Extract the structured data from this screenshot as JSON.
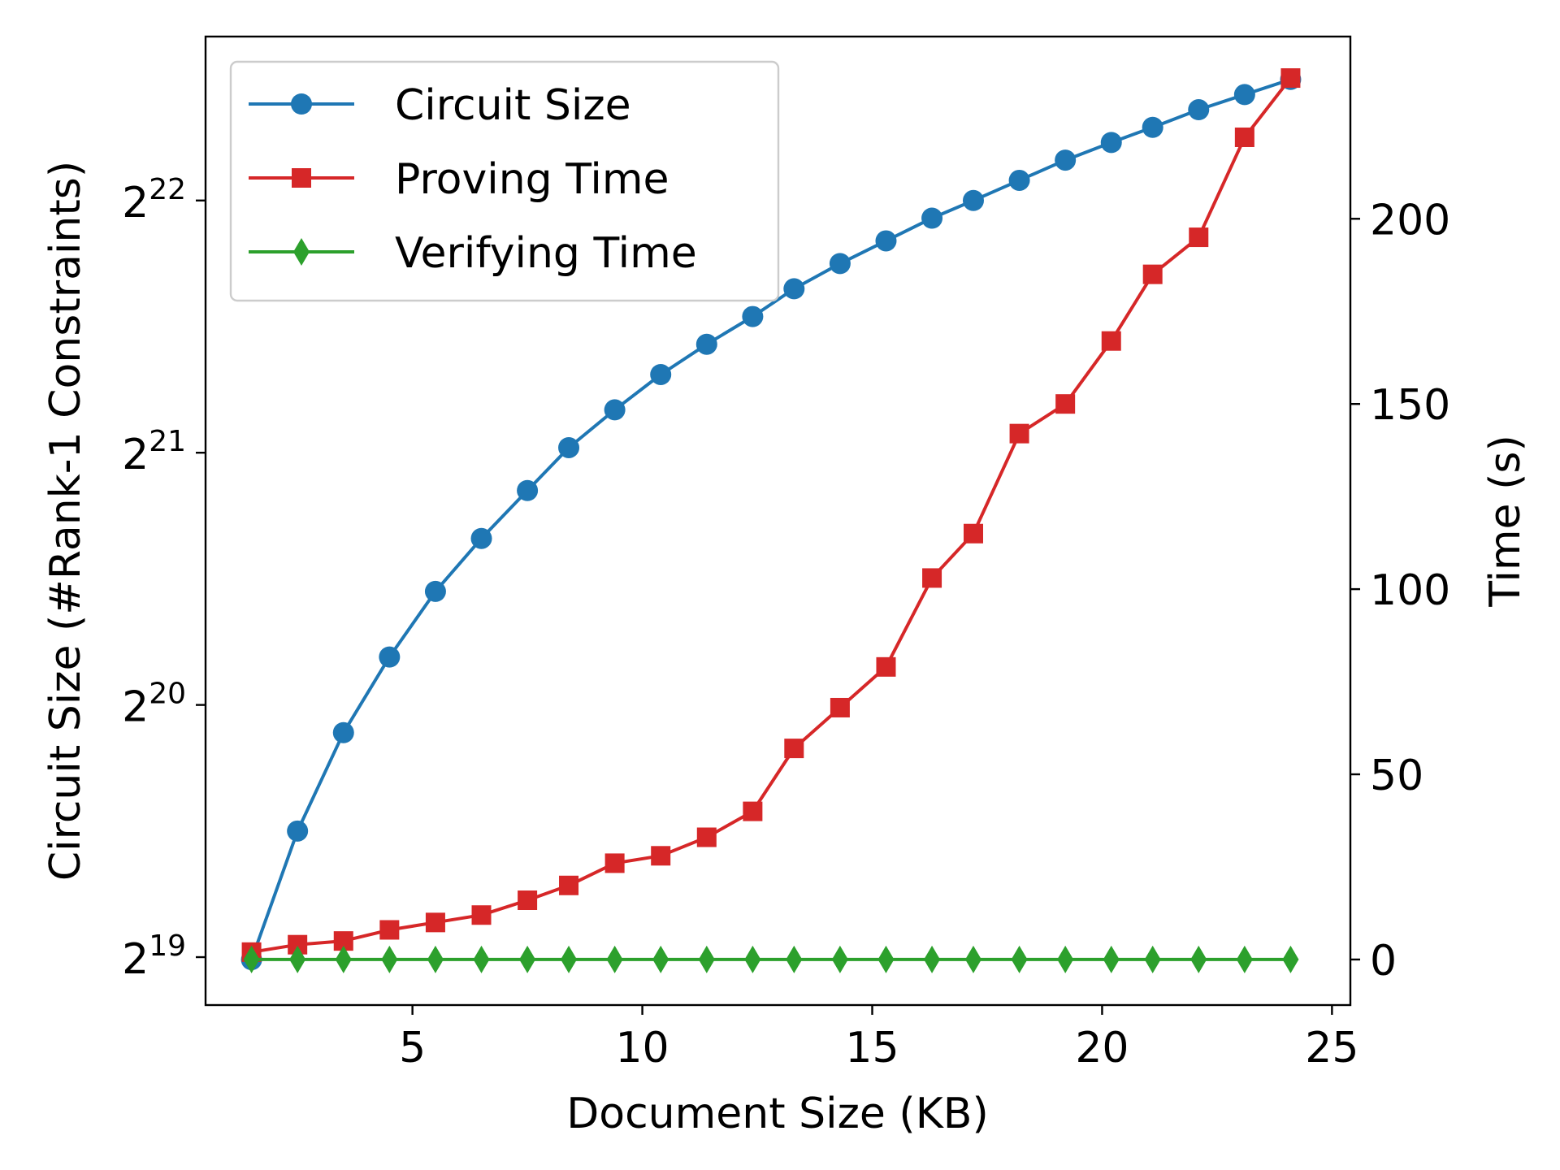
{
  "chart_data": {
    "type": "line",
    "xlabel": "Document Size (KB)",
    "ylabel_left": "Circuit Size (#Rank-1 Constraints)",
    "ylabel_right": "Time (s)",
    "x_ticks": [
      "5",
      "10",
      "15",
      "20",
      "25"
    ],
    "y_left_ticks": [
      {
        "base": "2",
        "exp": "19"
      },
      {
        "base": "2",
        "exp": "20"
      },
      {
        "base": "2",
        "exp": "21"
      },
      {
        "base": "2",
        "exp": "22"
      }
    ],
    "y_right_ticks": [
      "0",
      "50",
      "100",
      "150",
      "200"
    ],
    "xlim": [
      0.5,
      25.4
    ],
    "y_left_scale": "log2",
    "y_left_lim_log2": [
      18.81,
      22.65
    ],
    "y_right_lim": [
      -12.3,
      249.2
    ],
    "legend_position": "upper-left",
    "x": [
      1.5,
      2.5,
      3.5,
      4.5,
      5.5,
      6.5,
      7.5,
      8.4,
      9.4,
      10.4,
      11.4,
      12.4,
      13.3,
      14.3,
      15.3,
      16.3,
      17.2,
      18.2,
      19.2,
      20.2,
      21.1,
      22.1,
      23.1,
      24.1
    ],
    "series": [
      {
        "name": "Circuit Size",
        "axis": "left",
        "color": "#1f77b4",
        "marker": "circle",
        "values_log2": [
          18.99,
          19.5,
          19.89,
          20.19,
          20.45,
          20.66,
          20.85,
          21.02,
          21.17,
          21.31,
          21.43,
          21.54,
          21.65,
          21.75,
          21.84,
          21.93,
          22.0,
          22.08,
          22.16,
          22.23,
          22.29,
          22.36,
          22.42,
          22.48
        ]
      },
      {
        "name": "Proving Time",
        "axis": "right",
        "color": "#d62728",
        "marker": "square",
        "values": [
          2,
          4,
          5,
          8,
          10,
          12,
          16,
          20,
          26,
          28,
          33,
          40,
          57,
          68,
          79,
          103,
          115,
          142,
          150,
          167,
          185,
          195,
          222,
          238
        ]
      },
      {
        "name": "Verifying Time",
        "axis": "right",
        "color": "#2ca02c",
        "marker": "diamond",
        "values": [
          0,
          0,
          0,
          0,
          0,
          0,
          0,
          0,
          0,
          0,
          0,
          0,
          0,
          0,
          0,
          0,
          0,
          0,
          0,
          0,
          0,
          0,
          0,
          0
        ]
      }
    ]
  }
}
